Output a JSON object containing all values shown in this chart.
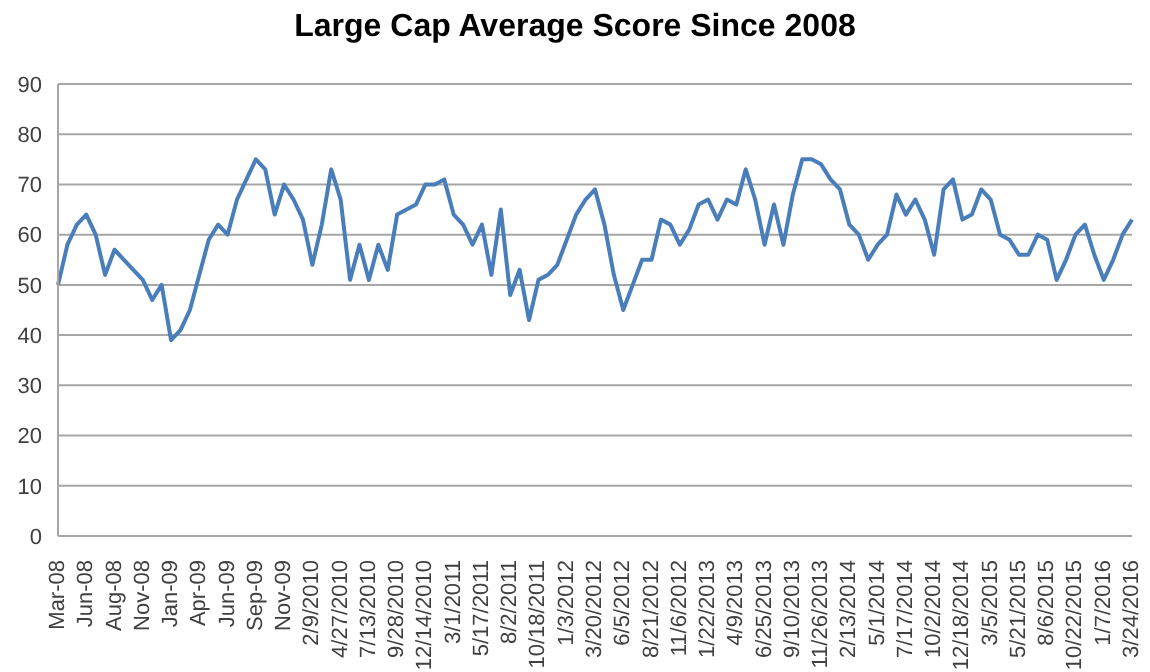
{
  "chart_data": {
    "type": "line",
    "title": "Large Cap Average Score Since 2008",
    "categories": [
      "Mar-08",
      null,
      null,
      "Jun-08",
      null,
      null,
      "Aug-08",
      null,
      null,
      "Nov-08",
      null,
      null,
      "Jan-09",
      null,
      null,
      "Apr-09",
      null,
      null,
      "Jun-09",
      null,
      null,
      "Sep-09",
      null,
      null,
      "Nov-09",
      null,
      null,
      "2/9/2010",
      null,
      null,
      "4/27/2010",
      null,
      null,
      "7/13/2010",
      null,
      null,
      "9/28/2010",
      null,
      null,
      "12/14/2010",
      null,
      null,
      "3/1/2011",
      null,
      null,
      "5/17/2011",
      null,
      null,
      "8/2/2011",
      null,
      null,
      "10/18/2011",
      null,
      null,
      "1/3/2012",
      null,
      null,
      "3/20/2012",
      null,
      null,
      "6/5/2012",
      null,
      null,
      "8/21/2012",
      null,
      null,
      "11/6/2012",
      null,
      null,
      "1/22/2013",
      null,
      null,
      "4/9/2013",
      null,
      null,
      "6/25/2013",
      null,
      null,
      "9/10/2013",
      null,
      null,
      "11/26/2013",
      null,
      null,
      "2/13/2014",
      null,
      null,
      "5/1/2014",
      null,
      null,
      "7/17/2014",
      null,
      null,
      "10/2/2014",
      null,
      null,
      "12/18/2014",
      null,
      null,
      "3/5/2015",
      null,
      null,
      "5/21/2015",
      null,
      null,
      "8/6/2015",
      null,
      null,
      "10/22/2015",
      null,
      null,
      "1/7/2016",
      null,
      null,
      "3/24/2016"
    ],
    "series": [
      {
        "color": "#4a7ebb",
        "values": [
          50,
          58,
          62,
          64,
          60,
          52,
          57,
          55,
          53,
          51,
          47,
          50,
          39,
          41,
          45,
          52,
          59,
          62,
          60,
          67,
          71,
          75,
          73,
          64,
          70,
          67,
          63,
          54,
          62,
          73,
          67,
          51,
          58,
          51,
          58,
          53,
          64,
          65,
          66,
          70,
          70,
          71,
          64,
          62,
          58,
          62,
          52,
          65,
          48,
          53,
          43,
          51,
          52,
          54,
          59,
          64,
          67,
          69,
          62,
          52,
          45,
          50,
          55,
          55,
          63,
          62,
          58,
          61,
          66,
          67,
          63,
          67,
          66,
          73,
          67,
          58,
          66,
          58,
          68,
          75,
          75,
          74,
          71,
          69,
          62,
          60,
          55,
          58,
          60,
          68,
          64,
          67,
          63,
          56,
          69,
          71,
          63,
          64,
          69,
          67,
          60,
          59,
          56,
          56,
          60,
          59,
          51,
          55,
          60,
          62,
          56,
          51,
          55,
          60,
          63
        ]
      }
    ],
    "ylim": [
      0,
      90
    ],
    "yticks": [
      0,
      10,
      20,
      30,
      40,
      50,
      60,
      70,
      80,
      90
    ],
    "grid": "y",
    "legend": false,
    "marker": "none",
    "line_style": "solid"
  }
}
